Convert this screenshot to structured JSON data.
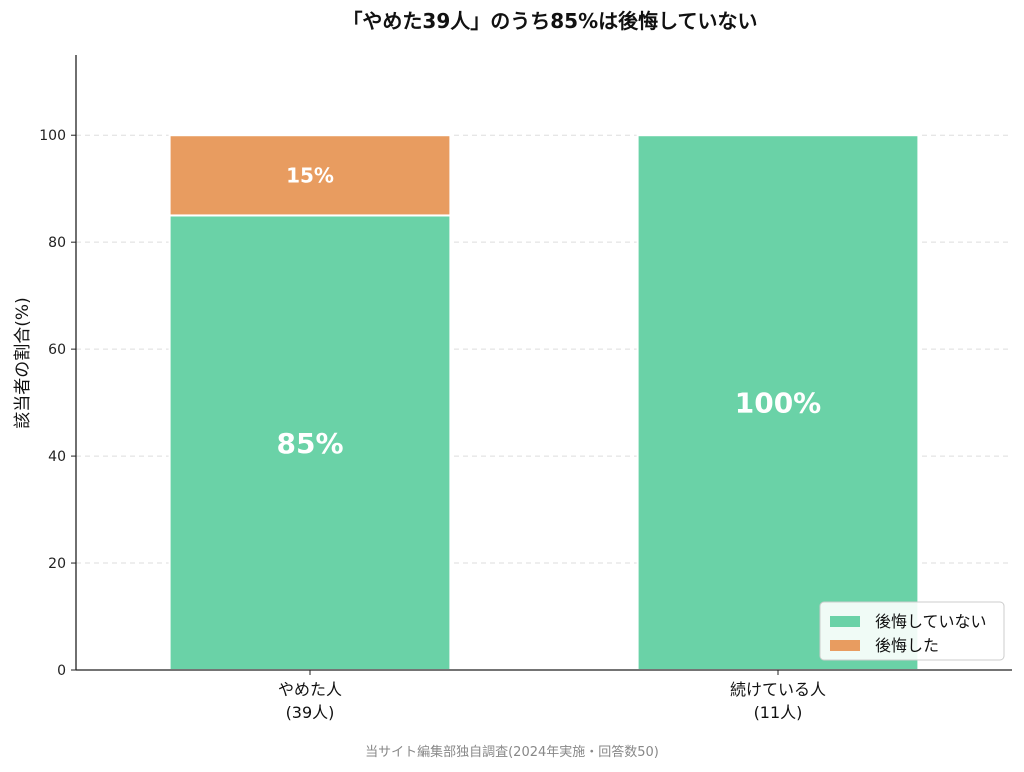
{
  "chart_data": {
    "type": "bar",
    "stacked": true,
    "title": "「やめた39人」のうち85%は後悔していない",
    "ylabel": "該当者の割合(%)",
    "xlabel": "",
    "ylim": [
      0,
      115
    ],
    "yticks": [
      0,
      20,
      40,
      60,
      80,
      100
    ],
    "grid": true,
    "legend_position": "bottom-right",
    "categories": [
      {
        "line1": "やめた人",
        "line2": "(39人)"
      },
      {
        "line1": "続けている人",
        "line2": "(11人)"
      }
    ],
    "series": [
      {
        "name": "後悔していない",
        "color": "#6ad2a7",
        "values": [
          85,
          100
        ],
        "labels": [
          "85%",
          "100%"
        ]
      },
      {
        "name": "後悔した",
        "color": "#e89c60",
        "values": [
          15,
          0
        ],
        "labels": [
          "15%",
          ""
        ]
      }
    ],
    "source_note": "当サイト編集部独自調査(2024年実施・回答数50)"
  }
}
